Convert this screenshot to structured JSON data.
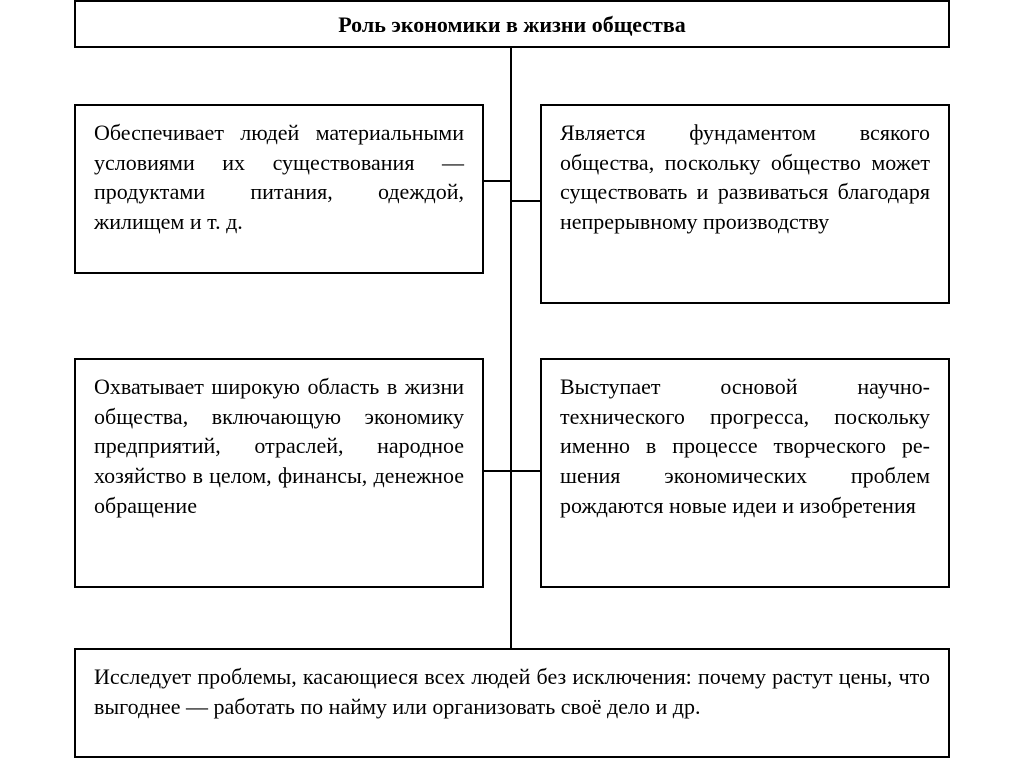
{
  "diagram": {
    "type": "flowchart",
    "background_color": "#ffffff",
    "border_color": "#000000",
    "border_width": 2,
    "font_family": "Georgia, Times New Roman, serif",
    "title": {
      "text": "Роль экономики в жизни общества",
      "fontsize": 22,
      "font_weight": "bold",
      "text_align": "center"
    },
    "boxes": {
      "top_left": {
        "text": "Обеспечивает людей мате­риальными условиями их существования — продук­тами питания, одеждой, жилищем и т. д.",
        "fontsize": 22,
        "text_align": "justify"
      },
      "top_right": {
        "text": "Является фундаментом всякого общества, по­скольку общество может существовать и развивать­ся благодаря непрерывно­му производству",
        "fontsize": 22,
        "text_align": "justify"
      },
      "bottom_left": {
        "text": "Охватывает широкую об­ласть в жизни общества, включающую экономику предприятий, отраслей, народное хозяйство в це­лом, финансы, денежное обращение",
        "fontsize": 22,
        "text_align": "justify"
      },
      "bottom_right": {
        "text": "Выступает основой науч­но-технического прогрес­са, поскольку именно в процессе творческого ре­шения экономических проблем рождаются но­вые идеи и изобретения",
        "fontsize": 22,
        "text_align": "justify"
      },
      "bottom": {
        "text": "Исследует проблемы, касающиеся всех людей без исключения: почему растут цены, что выгоднее — работать по найму или ор­ганизовать своё дело и др.",
        "fontsize": 22,
        "text_align": "justify"
      }
    },
    "connectors": {
      "color": "#000000",
      "width": 2,
      "spine": {
        "from": "title",
        "to": "bottom_box",
        "orientation": "vertical"
      },
      "branches": [
        {
          "from": "spine",
          "to": "top_left",
          "orientation": "horizontal"
        },
        {
          "from": "spine",
          "to": "top_right",
          "orientation": "horizontal"
        },
        {
          "from": "spine",
          "to": "bottom_left",
          "orientation": "horizontal"
        },
        {
          "from": "spine",
          "to": "bottom_right",
          "orientation": "horizontal"
        }
      ]
    }
  }
}
